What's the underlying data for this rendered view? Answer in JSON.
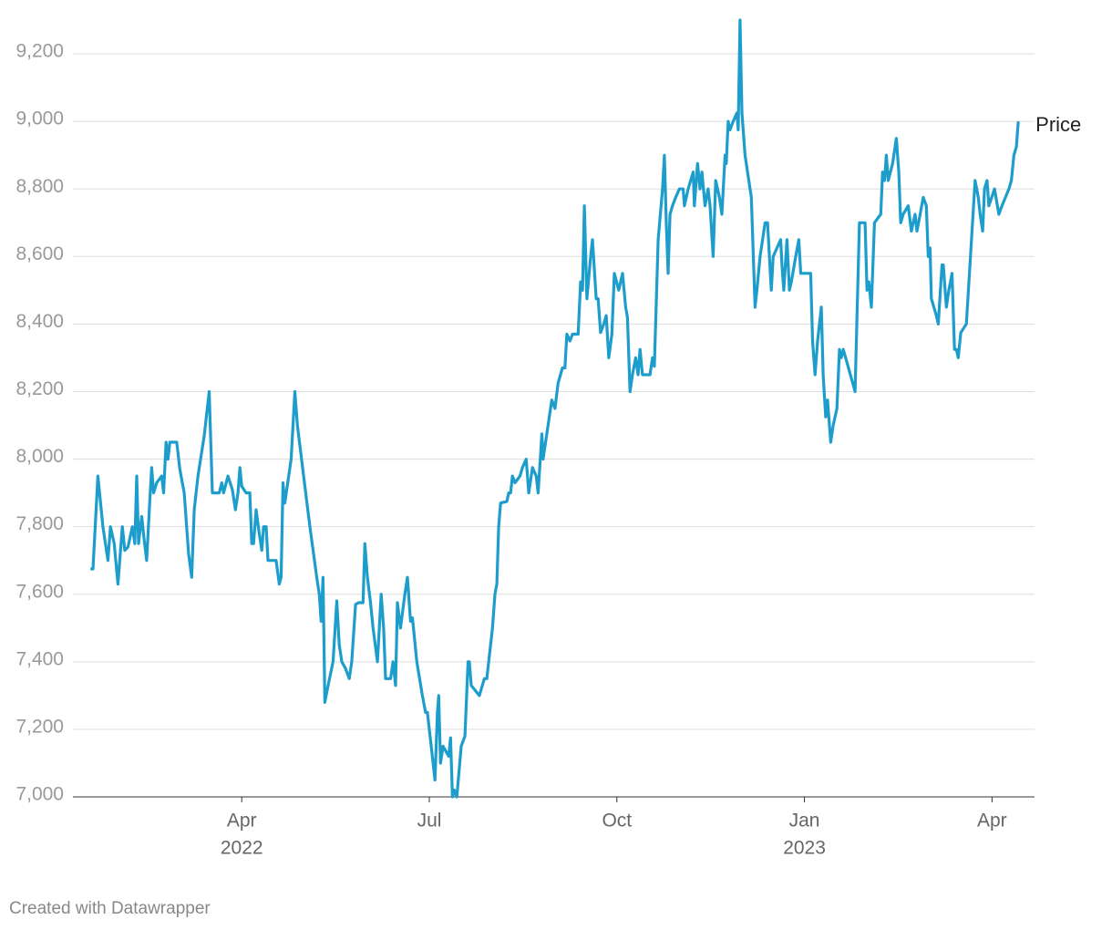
{
  "chart_data": {
    "type": "line",
    "x": [
      0.58,
      0.62,
      0.7,
      0.78,
      0.86,
      0.9,
      0.96,
      1.02,
      1.09,
      1.13,
      1.18,
      1.25,
      1.29,
      1.32,
      1.35,
      1.4,
      1.44,
      1.48,
      1.53,
      1.56,
      1.59,
      1.64,
      1.72,
      1.75,
      1.79,
      1.82,
      1.85,
      1.96,
      2.01,
      2.08,
      2.15,
      2.2,
      2.24,
      2.3,
      2.4,
      2.48,
      2.53,
      2.64,
      2.68,
      2.71,
      2.78,
      2.85,
      2.9,
      2.94,
      2.97,
      3.0,
      3.07,
      3.13,
      3.16,
      3.19,
      3.23,
      3.28,
      3.32,
      3.35,
      3.39,
      3.42,
      3.51,
      3.55,
      3.6,
      3.63,
      3.66,
      3.69,
      3.79,
      3.85,
      3.89,
      3.99,
      4.09,
      4.2,
      4.24,
      4.27,
      4.3,
      4.33,
      4.37,
      4.46,
      4.52,
      4.56,
      4.6,
      4.66,
      4.72,
      4.76,
      4.82,
      4.87,
      4.94,
      4.97,
      5.01,
      5.06,
      5.1,
      5.17,
      5.23,
      5.27,
      5.3,
      5.38,
      5.42,
      5.46,
      5.49,
      5.54,
      5.61,
      5.65,
      5.7,
      5.73,
      5.8,
      5.89,
      5.94,
      5.97,
      6.03,
      6.09,
      6.13,
      6.15,
      6.18,
      6.22,
      6.28,
      6.31,
      6.34,
      6.37,
      6.4,
      6.44,
      6.51,
      6.57,
      6.62,
      6.64,
      6.67,
      6.8,
      6.88,
      6.92,
      7.01,
      7.05,
      7.08,
      7.11,
      7.14,
      7.24,
      7.27,
      7.3,
      7.33,
      7.37,
      7.45,
      7.49,
      7.55,
      7.59,
      7.65,
      7.71,
      7.74,
      7.8,
      7.82,
      7.9,
      7.96,
      8.01,
      8.06,
      8.13,
      8.17,
      8.2,
      8.25,
      8.29,
      8.38,
      8.42,
      8.45,
      8.48,
      8.52,
      8.58,
      8.61,
      8.67,
      8.7,
      8.74,
      8.79,
      8.83,
      8.87,
      8.92,
      8.96,
      9.03,
      9.09,
      9.14,
      9.17,
      9.21,
      9.25,
      9.3,
      9.34,
      9.37,
      9.41,
      9.53,
      9.57,
      9.6,
      9.66,
      9.73,
      9.76,
      9.79,
      9.82,
      9.85,
      9.89,
      9.94,
      10.0,
      10.06,
      10.08,
      10.14,
      10.22,
      10.24,
      10.29,
      10.33,
      10.36,
      10.41,
      10.46,
      10.49,
      10.54,
      10.58,
      10.64,
      10.68,
      10.73,
      10.75,
      10.78,
      10.81,
      10.86,
      10.92,
      10.94,
      10.97,
      11.0,
      11.05,
      11.15,
      11.21,
      11.24,
      11.29,
      11.37,
      11.41,
      11.47,
      11.5,
      11.56,
      11.62,
      11.64,
      11.67,
      11.72,
      11.76,
      11.79,
      11.86,
      11.91,
      11.94,
      12.1,
      12.13,
      12.17,
      12.21,
      12.27,
      12.3,
      12.34,
      12.37,
      12.42,
      12.46,
      12.52,
      12.56,
      12.59,
      12.62,
      12.66,
      12.81,
      12.88,
      12.97,
      13.0,
      13.03,
      13.07,
      13.12,
      13.22,
      13.25,
      13.28,
      13.31,
      13.34,
      13.41,
      13.47,
      13.51,
      13.54,
      13.58,
      13.66,
      13.71,
      13.77,
      13.8,
      13.85,
      13.9,
      13.95,
      13.98,
      14.01,
      14.03,
      14.11,
      14.14,
      14.2,
      14.22,
      14.27,
      14.31,
      14.36,
      14.4,
      14.43,
      14.46,
      14.5,
      14.59,
      14.73,
      14.78,
      14.81,
      14.85,
      14.88,
      14.92,
      14.95,
      15.04,
      15.11,
      15.16,
      15.27,
      15.31,
      15.35,
      15.39,
      15.42
    ],
    "series": [
      {
        "name": "Price",
        "color": "#1d9dcb",
        "values": [
          7675,
          7675,
          7950,
          7800,
          7700,
          7800,
          7750,
          7630,
          7800,
          7730,
          7740,
          7800,
          7750,
          7950,
          7750,
          7830,
          7760,
          7700,
          7880,
          7975,
          7900,
          7930,
          7950,
          7900,
          8050,
          8000,
          8050,
          8050,
          7970,
          7900,
          7720,
          7650,
          7850,
          7950,
          8070,
          8200,
          7900,
          7900,
          7930,
          7900,
          7950,
          7910,
          7850,
          7900,
          7975,
          7920,
          7900,
          7900,
          7750,
          7750,
          7850,
          7780,
          7730,
          7800,
          7800,
          7700,
          7700,
          7700,
          7630,
          7650,
          7930,
          7870,
          8000,
          8200,
          8100,
          7950,
          7800,
          7650,
          7600,
          7520,
          7650,
          7280,
          7320,
          7400,
          7580,
          7450,
          7400,
          7380,
          7350,
          7400,
          7570,
          7575,
          7575,
          7750,
          7650,
          7575,
          7500,
          7400,
          7600,
          7500,
          7350,
          7350,
          7400,
          7330,
          7575,
          7500,
          7600,
          7650,
          7520,
          7530,
          7400,
          7300,
          7250,
          7250,
          7150,
          7050,
          7250,
          7300,
          7100,
          7150,
          7130,
          7120,
          7175,
          7000,
          7020,
          7000,
          7150,
          7180,
          7400,
          7400,
          7330,
          7300,
          7350,
          7350,
          7500,
          7600,
          7630,
          7800,
          7870,
          7875,
          7900,
          7900,
          7950,
          7930,
          7950,
          7975,
          8000,
          7900,
          7975,
          7950,
          7900,
          8075,
          8000,
          8100,
          8175,
          8150,
          8225,
          8270,
          8270,
          8370,
          8350,
          8370,
          8370,
          8525,
          8500,
          8750,
          8475,
          8600,
          8650,
          8475,
          8475,
          8375,
          8400,
          8425,
          8300,
          8370,
          8550,
          8500,
          8550,
          8450,
          8420,
          8200,
          8250,
          8300,
          8250,
          8325,
          8250,
          8250,
          8300,
          8275,
          8650,
          8800,
          8900,
          8700,
          8550,
          8725,
          8750,
          8775,
          8800,
          8800,
          8750,
          8800,
          8850,
          8750,
          8875,
          8800,
          8850,
          8750,
          8800,
          8750,
          8600,
          8825,
          8775,
          8725,
          8900,
          8875,
          9000,
          8975,
          9000,
          9025,
          8975,
          9300,
          9025,
          8900,
          8775,
          8450,
          8500,
          8600,
          8700,
          8700,
          8500,
          8600,
          8625,
          8650,
          8575,
          8500,
          8650,
          8500,
          8525,
          8600,
          8650,
          8550,
          8550,
          8350,
          8250,
          8350,
          8450,
          8250,
          8125,
          8175,
          8050,
          8100,
          8150,
          8325,
          8300,
          8325,
          8300,
          8200,
          8700,
          8700,
          8500,
          8525,
          8450,
          8700,
          8725,
          8850,
          8825,
          8900,
          8825,
          8875,
          8950,
          8850,
          8700,
          8725,
          8750,
          8675,
          8725,
          8675,
          8725,
          8775,
          8750,
          8600,
          8625,
          8475,
          8425,
          8400,
          8575,
          8575,
          8450,
          8500,
          8550,
          8325,
          8325,
          8300,
          8375,
          8400,
          8825,
          8775,
          8725,
          8675,
          8800,
          8825,
          8750,
          8800,
          8725,
          8750,
          8800,
          8825,
          8900,
          8925,
          9000
        ]
      }
    ],
    "xlim": [
      0.3,
      15.68
    ],
    "xticks": [
      {
        "value": 3,
        "label": "Apr"
      },
      {
        "value": 6,
        "label": "Jul"
      },
      {
        "value": 9,
        "label": "Oct"
      },
      {
        "value": 12,
        "label": "Jan"
      },
      {
        "value": 15,
        "label": "Apr"
      }
    ],
    "xtick_years": [
      {
        "value": 3,
        "label": "2022"
      },
      {
        "value": 12,
        "label": "2023"
      }
    ],
    "ylim": [
      7000,
      9300
    ],
    "yticks": [
      {
        "value": 7000,
        "label": "7,000"
      },
      {
        "value": 7200,
        "label": "7,200"
      },
      {
        "value": 7400,
        "label": "7,400"
      },
      {
        "value": 7600,
        "label": "7,600"
      },
      {
        "value": 7800,
        "label": "7,800"
      },
      {
        "value": 8000,
        "label": "8,000"
      },
      {
        "value": 8200,
        "label": "8,200"
      },
      {
        "value": 8400,
        "label": "8,400"
      },
      {
        "value": 8600,
        "label": "8,600"
      },
      {
        "value": 8800,
        "label": "8,800"
      },
      {
        "value": 9000,
        "label": "9,000"
      },
      {
        "value": 9200,
        "label": "9,200"
      }
    ],
    "grid": true,
    "credit": "Created with Datawrapper"
  }
}
